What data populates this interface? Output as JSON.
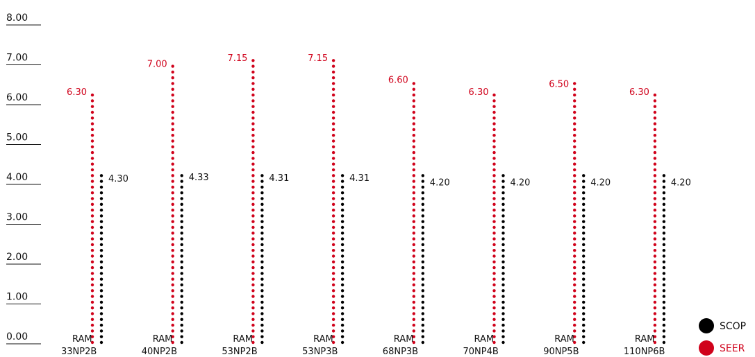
{
  "chart_data": {
    "type": "bar",
    "title": "",
    "xlabel": "",
    "ylabel": "",
    "ylim": [
      0,
      8
    ],
    "y_ticks": [
      "0.00",
      "1.00",
      "2.00",
      "3.00",
      "4.00",
      "5.00",
      "6.00",
      "7.00",
      "8.00"
    ],
    "grid": false,
    "legend_position": "bottom-right",
    "categories": [
      {
        "line1": "RAM",
        "line2": "33NP2B"
      },
      {
        "line1": "RAM",
        "line2": "40NP2B"
      },
      {
        "line1": "RAM",
        "line2": "53NP2B"
      },
      {
        "line1": "RAM",
        "line2": "53NP3B"
      },
      {
        "line1": "RAM",
        "line2": "68NP3B"
      },
      {
        "line1": "RAM",
        "line2": "70NP4B"
      },
      {
        "line1": "RAM",
        "line2": "90NP5B"
      },
      {
        "line1": "RAM",
        "line2": "110NP6B"
      }
    ],
    "series": [
      {
        "name": "SEER",
        "color": "#d0021b",
        "values": [
          6.3,
          7.0,
          7.15,
          7.15,
          6.6,
          6.3,
          6.5,
          6.3
        ],
        "value_labels": [
          "6.30",
          "7.00",
          "7.15",
          "7.15",
          "6.60",
          "6.30",
          "6.50",
          "6.30"
        ]
      },
      {
        "name": "SCOP",
        "color": "#000000",
        "values": [
          4.3,
          4.33,
          4.31,
          4.31,
          4.2,
          4.2,
          4.2,
          4.2
        ],
        "value_labels": [
          "4.30",
          "4.33",
          "4.31",
          "4.31",
          "4.20",
          "4.20",
          "4.20",
          "4.20"
        ]
      }
    ]
  }
}
